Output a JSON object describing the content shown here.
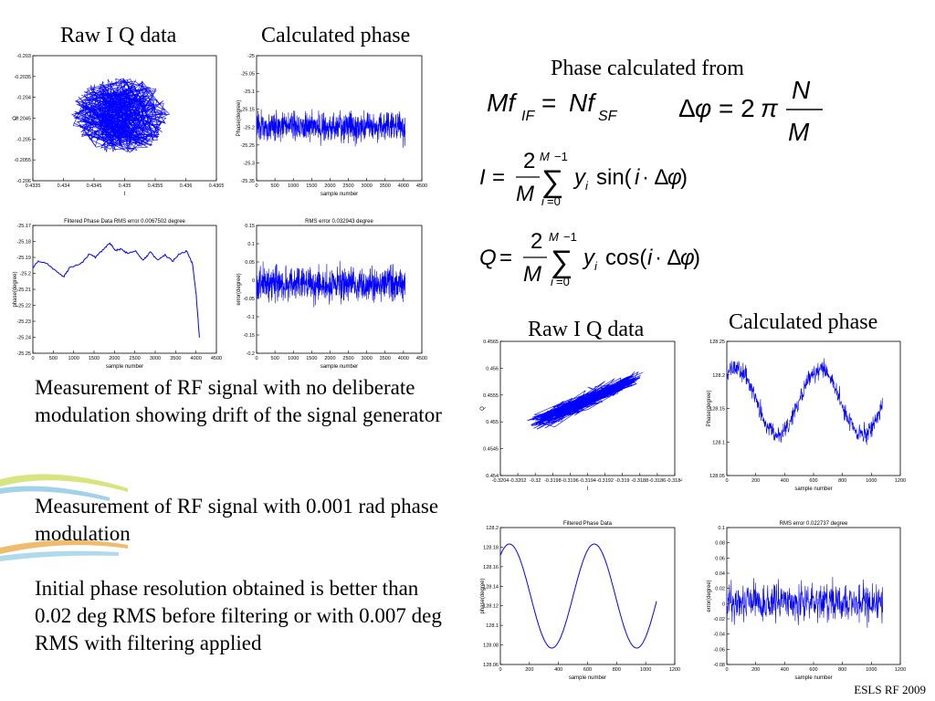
{
  "headings": {
    "raw_iq_top": "Raw I Q data",
    "calc_phase_top": "Calculated phase",
    "raw_iq_bottom": "Raw I Q data",
    "calc_phase_bottom": "Calculated phase",
    "phase_from": "Phase calculated from"
  },
  "paragraphs": {
    "p1": "Measurement of RF signal with no deliberate modulation showing drift of the signal generator",
    "p2": "Measurement of RF signal with 0.001 rad phase modulation",
    "p3": "Initial phase resolution obtained is better than 0.02 deg RMS before filtering or with 0.007 deg RMS with filtering applied"
  },
  "footer": "ESLS RF 2009",
  "colors": {
    "trace": "#0000ff",
    "axis": "#000000"
  },
  "charts": {
    "c1": {
      "title": "",
      "xlabel": "I",
      "ylabel": "Q",
      "xticks": [
        "0.4335",
        "0.434",
        "0.4345",
        "0.435",
        "0.4355",
        "0.436",
        "0.4365"
      ],
      "yticks": [
        "-0.203",
        "-0.2035",
        "-0.204",
        "-0.2045",
        "-0.205",
        "-0.2055",
        "-0.206"
      ]
    },
    "c2": {
      "title": "",
      "xlabel": "sample number",
      "ylabel": "Phase(degree)",
      "xticks": [
        "0",
        "500",
        "1000",
        "1500",
        "2000",
        "2500",
        "3000",
        "3500",
        "4000",
        "4500"
      ],
      "yticks": [
        "-25",
        "-25.05",
        "-25.1",
        "-25.15",
        "-25.2",
        "-25.25",
        "-25.3",
        "-25.35"
      ]
    },
    "c3": {
      "title": "Filtered Phase Data RMS error 0.0067502 degree",
      "xlabel": "sample number",
      "ylabel": "phase(degree)",
      "xticks": [
        "0",
        "500",
        "1000",
        "1500",
        "2000",
        "2500",
        "3000",
        "3500",
        "4000",
        "4500"
      ],
      "yticks": [
        "-25.17",
        "-25.18",
        "-25.19",
        "-25.2",
        "-25.21",
        "-25.22",
        "-25.23",
        "-25.24",
        "-25.25"
      ]
    },
    "c4": {
      "title": "RMS error 0.032943 degree",
      "xlabel": "sample number",
      "ylabel": "error(degree)",
      "xticks": [
        "0",
        "500",
        "1000",
        "1500",
        "2000",
        "2500",
        "3000",
        "3500",
        "4000",
        "4500"
      ],
      "yticks": [
        "0.15",
        "0.1",
        "0.05",
        "0",
        "-0.05",
        "-0.1",
        "-0.15",
        "-0.2"
      ]
    },
    "c5": {
      "title": "",
      "xlabel": "I",
      "ylabel": "Q",
      "xticks": [
        "-0.3204",
        "-0.3202",
        "-0.32",
        "-0.3198",
        "-0.3196",
        "-0.3194",
        "-0.3192",
        "-0.319",
        "-0.3188",
        "-0.3186",
        "-0.3184"
      ],
      "yticks": [
        "0.4565",
        "0.456",
        "0.4555",
        "0.455",
        "0.4545",
        "0.454"
      ]
    },
    "c6": {
      "title": "",
      "xlabel": "sample number",
      "ylabel": "Phase(degree)",
      "xticks": [
        "0",
        "200",
        "400",
        "600",
        "800",
        "1000",
        "1200"
      ],
      "yticks": [
        "128.25",
        "128.2",
        "128.15",
        "128.1",
        "128.05"
      ]
    },
    "c7": {
      "title": "Filtered Phase Data",
      "xlabel": "sample number",
      "ylabel": "phase(degree)",
      "xticks": [
        "0",
        "200",
        "400",
        "600",
        "800",
        "1000",
        "1200"
      ],
      "yticks": [
        "128.2",
        "128.18",
        "128.16",
        "128.14",
        "128.12",
        "128.1",
        "128.08",
        "128.06"
      ]
    },
    "c8": {
      "title": "RMS error 0.022737 degree",
      "xlabel": "sample number",
      "ylabel": "error(degree)",
      "xticks": [
        "0",
        "200",
        "400",
        "600",
        "800",
        "1000",
        "1200"
      ],
      "yticks": [
        "0.1",
        "0.08",
        "0.06",
        "0.04",
        "0.02",
        "0",
        "-0.02",
        "-0.04",
        "-0.06",
        "-0.08"
      ]
    }
  }
}
